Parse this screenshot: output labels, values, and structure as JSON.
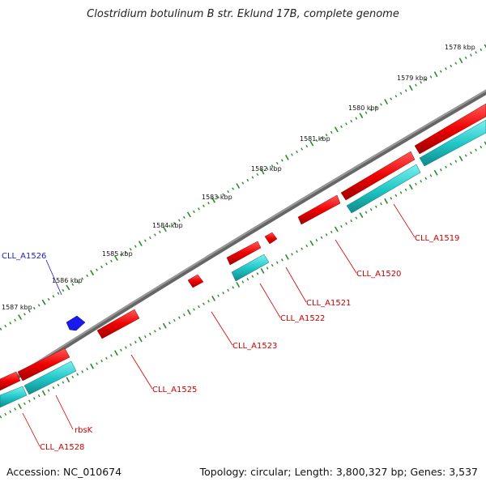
{
  "title": "Clostridium botulinum B str. Eklund 17B, complete genome",
  "footer": {
    "accession": "Accession: NC_010674",
    "summary": "Topology: circular; Length: 3,800,327 bp; Genes: 3,537"
  },
  "ruler_labels": [
    "1578 kbp",
    "1579 kbp",
    "1580 kbp",
    "1581 kbp",
    "1582 kbp",
    "1583 kbp",
    "1584 kbp",
    "1585 kbp",
    "1586 kbp",
    "1587 kbp"
  ],
  "genes": [
    {
      "label": "CLL_A1519",
      "color": "#dd0000"
    },
    {
      "label": "CLL_A1520",
      "color": "#dd0000"
    },
    {
      "label": "CLL_A1521",
      "color": "#dd0000"
    },
    {
      "label": "CLL_A1522",
      "color": "#dd0000"
    },
    {
      "label": "CLL_A1523",
      "color": "#dd0000"
    },
    {
      "label": "CLL_A1525",
      "color": "#dd0000"
    },
    {
      "label": "CLL_A1526",
      "color": "#1a1acc"
    },
    {
      "label": "rbsK",
      "color": "#dd0000"
    },
    {
      "label": "CLL_A1528",
      "color": "#dd0000"
    }
  ],
  "colors": {
    "backbone": "#7a7a7a",
    "forward_gene": "#ee1111",
    "reverse_gene": "#1a1aee",
    "cds": "#22cccc",
    "tick": "#2a8a2a",
    "gene_label": "#cc0000",
    "blue_label": "#1a1acc"
  }
}
